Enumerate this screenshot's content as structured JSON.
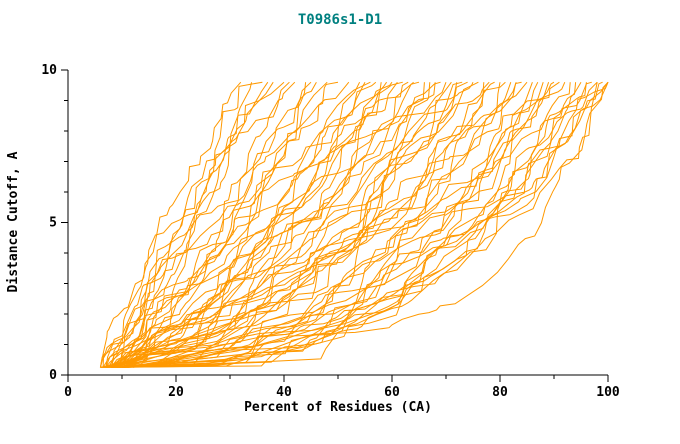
{
  "chart_data": {
    "type": "line",
    "title": "T0986s1-D1",
    "xlabel": "Percent of Residues (CA)",
    "ylabel": "Distance Cutoff, A",
    "xlim": [
      0,
      100
    ],
    "ylim": [
      0,
      10
    ],
    "x_ticks": [
      0,
      20,
      40,
      60,
      80,
      100
    ],
    "y_ticks": [
      0,
      5,
      10
    ],
    "x_minor_step": 10,
    "y_minor_step": 1,
    "grid": false,
    "legend": "none",
    "line_color": "#FF9900",
    "axis_color": "#000000",
    "title_color": "#008080",
    "curve_y_start": 0.25,
    "curve_y_end": 9.6,
    "curves": [
      {
        "x0": 6,
        "x1": 32,
        "p": 1.3
      },
      {
        "x0": 7,
        "x1": 34,
        "p": 1.2
      },
      {
        "x0": 6.5,
        "x1": 36,
        "p": 1.25
      },
      {
        "x0": 8,
        "x1": 38,
        "p": 1.1
      },
      {
        "x0": 7,
        "x1": 40,
        "p": 1.15
      },
      {
        "x0": 9,
        "x1": 42,
        "p": 1.0
      },
      {
        "x0": 6,
        "x1": 44,
        "p": 1.05
      },
      {
        "x0": 8,
        "x1": 46,
        "p": 0.95
      },
      {
        "x0": 7.5,
        "x1": 48,
        "p": 1.0
      },
      {
        "x0": 9,
        "x1": 50,
        "p": 0.9
      },
      {
        "x0": 6,
        "x1": 52,
        "p": 0.95
      },
      {
        "x0": 8,
        "x1": 54,
        "p": 0.85
      },
      {
        "x0": 10,
        "x1": 56,
        "p": 0.9
      },
      {
        "x0": 7,
        "x1": 58,
        "p": 0.8
      },
      {
        "x0": 9,
        "x1": 60,
        "p": 0.85
      },
      {
        "x0": 6.5,
        "x1": 62,
        "p": 0.75
      },
      {
        "x0": 8,
        "x1": 64,
        "p": 0.8
      },
      {
        "x0": 10,
        "x1": 66,
        "p": 0.7
      },
      {
        "x0": 7,
        "x1": 68,
        "p": 0.75
      },
      {
        "x0": 9,
        "x1": 70,
        "p": 0.65
      },
      {
        "x0": 6,
        "x1": 72,
        "p": 0.7
      },
      {
        "x0": 8,
        "x1": 74,
        "p": 0.6
      },
      {
        "x0": 10,
        "x1": 76,
        "p": 0.65
      },
      {
        "x0": 7,
        "x1": 78,
        "p": 0.55
      },
      {
        "x0": 9,
        "x1": 80,
        "p": 0.6
      },
      {
        "x0": 6.5,
        "x1": 82,
        "p": 0.5
      },
      {
        "x0": 8,
        "x1": 84,
        "p": 0.55
      },
      {
        "x0": 10,
        "x1": 86,
        "p": 0.5
      },
      {
        "x0": 7,
        "x1": 88,
        "p": 0.45
      },
      {
        "x0": 9,
        "x1": 90,
        "p": 0.5
      },
      {
        "x0": 6,
        "x1": 92,
        "p": 0.45
      },
      {
        "x0": 8,
        "x1": 94,
        "p": 0.4
      },
      {
        "x0": 10,
        "x1": 96,
        "p": 0.45
      },
      {
        "x0": 7,
        "x1": 98,
        "p": 0.4
      },
      {
        "x0": 9,
        "x1": 100,
        "p": 0.35
      },
      {
        "x0": 6,
        "x1": 100,
        "p": 0.4
      },
      {
        "x0": 8,
        "x1": 99,
        "p": 0.38
      },
      {
        "x0": 11,
        "x1": 97,
        "p": 0.42
      },
      {
        "x0": 7,
        "x1": 95,
        "p": 0.36
      },
      {
        "x0": 9,
        "x1": 93,
        "p": 0.44
      },
      {
        "x0": 6,
        "x1": 91,
        "p": 0.4
      },
      {
        "x0": 8,
        "x1": 89,
        "p": 0.5
      },
      {
        "x0": 11,
        "x1": 87,
        "p": 0.46
      },
      {
        "x0": 7,
        "x1": 85,
        "p": 0.52
      },
      {
        "x0": 9,
        "x1": 83,
        "p": 0.48
      },
      {
        "x0": 6,
        "x1": 81,
        "p": 0.55
      },
      {
        "x0": 8,
        "x1": 79,
        "p": 0.5
      },
      {
        "x0": 11,
        "x1": 77,
        "p": 0.6
      },
      {
        "x0": 7,
        "x1": 75,
        "p": 0.58
      },
      {
        "x0": 9,
        "x1": 73,
        "p": 0.62
      },
      {
        "x0": 6,
        "x1": 71,
        "p": 0.66
      },
      {
        "x0": 8,
        "x1": 69,
        "p": 0.64
      },
      {
        "x0": 11,
        "x1": 67,
        "p": 0.7
      },
      {
        "x0": 7,
        "x1": 65,
        "p": 0.72
      },
      {
        "x0": 9,
        "x1": 63,
        "p": 0.75
      },
      {
        "x0": 6,
        "x1": 61,
        "p": 0.8
      },
      {
        "x0": 8,
        "x1": 59,
        "p": 0.78
      },
      {
        "x0": 11,
        "x1": 57,
        "p": 0.85
      },
      {
        "x0": 7,
        "x1": 55,
        "p": 0.9
      },
      {
        "x0": 9,
        "x1": 100,
        "p": 0.3
      },
      {
        "x0": 10,
        "x1": 100,
        "p": 0.33
      },
      {
        "x0": 12,
        "x1": 98,
        "p": 0.35
      },
      {
        "x0": 6,
        "x1": 45,
        "p": 1.0
      },
      {
        "x0": 8,
        "x1": 37,
        "p": 1.2
      },
      {
        "x0": 10,
        "x1": 41,
        "p": 1.1
      }
    ]
  }
}
